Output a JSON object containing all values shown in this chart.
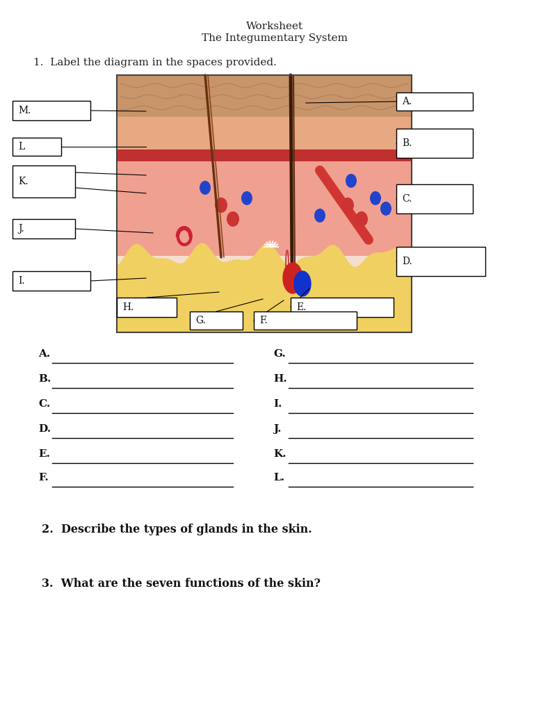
{
  "title_line1": "Worksheet",
  "title_line2": "The Integumentary System",
  "question1": "1.  Label the diagram in the spaces provided.",
  "question2": "2.  Describe the types of glands in the skin.",
  "question3": "3.  What are the seven functions of the skin?",
  "bg_color": "#ffffff",
  "fill_labels_left": [
    "A.",
    "B.",
    "C.",
    "D.",
    "E.",
    "F."
  ],
  "fill_labels_right": [
    "G.",
    "H.",
    "I.",
    "J.",
    "K.",
    "L."
  ]
}
